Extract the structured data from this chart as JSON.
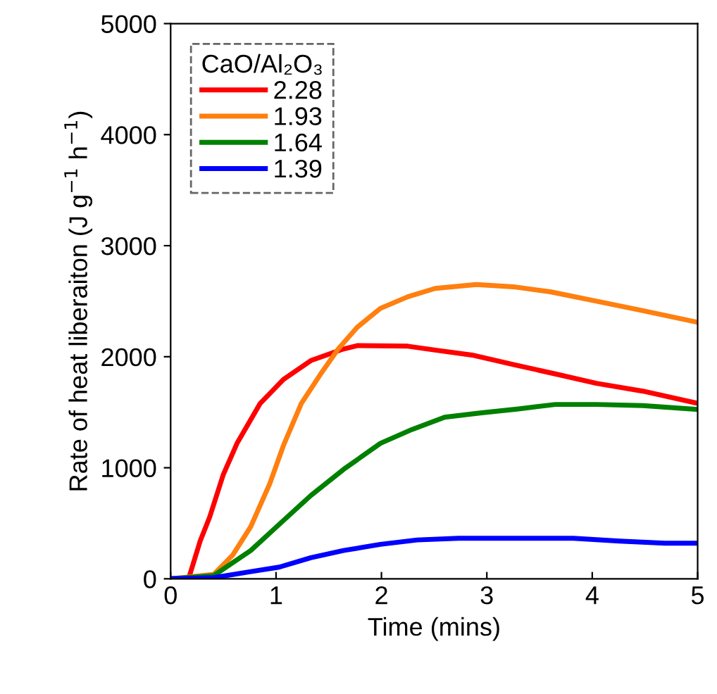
{
  "chart_data": {
    "type": "line",
    "xlabel": "Time (mins)",
    "ylabel": "Rate of heat liberaiton (J g$^{−1}$ h$^{−1}$)",
    "legend_title": "CaO/Al₂O₃",
    "legend": "top left",
    "grid": false,
    "marker": "none",
    "line_style": "solid",
    "xlim": [
      0,
      5
    ],
    "xticks": [
      0,
      1,
      2,
      3,
      4,
      5
    ],
    "ylim": [
      0,
      5000
    ],
    "yticks": [
      0,
      1000,
      2000,
      3000,
      4000,
      5000
    ],
    "series": [
      {
        "name": "2.28",
        "color": "#ff0000",
        "x": [
          0,
          0.17,
          0.28,
          0.37,
          0.5,
          0.63,
          0.85,
          1.07,
          1.33,
          1.64,
          1.77,
          2.25,
          2.51,
          2.86,
          3.25,
          3.65,
          4.04,
          4.48,
          5
        ],
        "values": [
          0,
          0,
          340,
          555,
          940,
          1220,
          1580,
          1795,
          1965,
          2070,
          2100,
          2095,
          2060,
          2015,
          1930,
          1845,
          1760,
          1690,
          1580
        ]
      },
      {
        "name": "1.93",
        "color": "#ff7f0f",
        "x": [
          0,
          0.41,
          0.59,
          0.76,
          0.94,
          1.07,
          1.24,
          1.42,
          1.59,
          1.77,
          1.99,
          2.25,
          2.51,
          2.9,
          3.25,
          3.6,
          4.04,
          4.48,
          5
        ],
        "values": [
          0,
          40,
          215,
          470,
          855,
          1200,
          1580,
          1840,
          2070,
          2265,
          2435,
          2540,
          2615,
          2650,
          2630,
          2585,
          2500,
          2415,
          2310
        ]
      },
      {
        "name": "1.64",
        "color": "#008000",
        "x": [
          0,
          0.41,
          0.76,
          1.03,
          1.33,
          1.64,
          1.99,
          2.29,
          2.6,
          2.95,
          3.3,
          3.65,
          4.04,
          4.48,
          5
        ],
        "values": [
          0,
          30,
          255,
          490,
          750,
          985,
          1220,
          1345,
          1455,
          1495,
          1530,
          1570,
          1570,
          1560,
          1525
        ]
      },
      {
        "name": "1.39",
        "color": "#0000ff",
        "x": [
          0,
          0.41,
          0.76,
          1.03,
          1.33,
          1.64,
          1.99,
          2.34,
          2.73,
          3.82,
          4.26,
          4.69,
          5
        ],
        "values": [
          0,
          10,
          65,
          105,
          190,
          255,
          310,
          350,
          365,
          365,
          340,
          320,
          320
        ]
      }
    ]
  }
}
